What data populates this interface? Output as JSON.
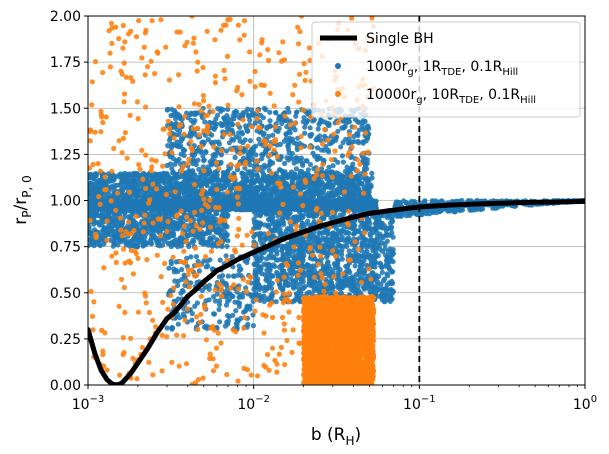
{
  "chart_data": {
    "type": "scatter",
    "title": "",
    "xlabel": {
      "main": "b (R",
      "sub": "H",
      "close": ")"
    },
    "ylabel": {
      "main": "r",
      "sub": "P",
      "mid": "/r",
      "sub2": "P, 0"
    },
    "xscale": "log",
    "xlim": [
      0.001,
      1
    ],
    "ylim": [
      0,
      2
    ],
    "grid": true,
    "x_ticks": [
      {
        "value": 0.001,
        "base": "10",
        "exp": "−3"
      },
      {
        "value": 0.01,
        "base": "10",
        "exp": "−2"
      },
      {
        "value": 0.1,
        "base": "10",
        "exp": "−1"
      },
      {
        "value": 1,
        "base": "10",
        "exp": "0"
      }
    ],
    "y_ticks": [
      {
        "value": 0.0,
        "label": "0.00"
      },
      {
        "value": 0.25,
        "label": "0.25"
      },
      {
        "value": 0.5,
        "label": "0.50"
      },
      {
        "value": 0.75,
        "label": "0.75"
      },
      {
        "value": 1.0,
        "label": "1.00"
      },
      {
        "value": 1.25,
        "label": "1.25"
      },
      {
        "value": 1.5,
        "label": "1.50"
      },
      {
        "value": 1.75,
        "label": "1.75"
      },
      {
        "value": 2.0,
        "label": "2.00"
      }
    ],
    "vline": {
      "x": 0.1,
      "style": "dashed",
      "color": "#000000"
    },
    "legend_position": "upper right",
    "series": [
      {
        "name": "Single BH",
        "kind": "line",
        "color": "#000000",
        "legend": [
          {
            "t": "Single BH"
          }
        ],
        "x": [
          0.001,
          0.0011,
          0.0012,
          0.0013,
          0.0014,
          0.0015,
          0.0016,
          0.0018,
          0.002,
          0.0023,
          0.0026,
          0.003,
          0.0033,
          0.0036,
          0.004,
          0.0045,
          0.005,
          0.0055,
          0.006,
          0.007,
          0.008,
          0.01,
          0.012,
          0.015,
          0.02,
          0.025,
          0.03,
          0.04,
          0.05,
          0.06,
          0.08,
          0.1,
          0.15,
          0.2,
          0.3,
          0.5,
          0.7,
          1.0
        ],
        "y": [
          0.3,
          0.17,
          0.08,
          0.03,
          0.005,
          0.0,
          0.01,
          0.06,
          0.12,
          0.2,
          0.28,
          0.36,
          0.39,
          0.43,
          0.48,
          0.52,
          0.56,
          0.59,
          0.62,
          0.65,
          0.68,
          0.72,
          0.75,
          0.79,
          0.83,
          0.86,
          0.88,
          0.91,
          0.93,
          0.94,
          0.955,
          0.965,
          0.975,
          0.98,
          0.985,
          0.99,
          0.992,
          0.995
        ]
      },
      {
        "name": "1000rg, 1RTDE, 0.1RHill",
        "kind": "scatter",
        "color": "#1f77b4",
        "legend": [
          {
            "t": "1000r"
          },
          {
            "t": "g",
            "sub": true
          },
          {
            "t": ", 1R"
          },
          {
            "t": "TDE",
            "sub": true
          },
          {
            "t": ", 0.1R"
          },
          {
            "t": "Hill",
            "sub": true
          }
        ],
        "regions": [
          {
            "x_range": [
              0.001,
              0.055
            ],
            "y_range": [
              0.95,
              1.0
            ],
            "density": "very high"
          },
          {
            "x_range": [
              0.001,
              0.052
            ],
            "y_range": [
              1.0,
              1.15
            ],
            "density": "high"
          },
          {
            "x_range": [
              0.003,
              0.05
            ],
            "y_range": [
              1.15,
              1.5
            ],
            "density": "medium"
          },
          {
            "x_range": [
              0.001,
              0.007
            ],
            "y_range": [
              0.75,
              0.95
            ],
            "density": "medium"
          },
          {
            "x_range": [
              0.01,
              0.07
            ],
            "y_range": [
              0.45,
              0.95
            ],
            "density": "high"
          },
          {
            "x_range": [
              0.003,
              0.01
            ],
            "y_range": [
              0.3,
              0.7
            ],
            "density": "low"
          },
          {
            "x_range": [
              0.07,
              1.0
            ],
            "y_range": [
              0.9,
              1.0
            ],
            "density": "band"
          }
        ]
      },
      {
        "name": "10000rg, 10RTDE, 0.1RHill",
        "kind": "scatter",
        "color": "#ff7f0e",
        "legend": [
          {
            "t": "10000r"
          },
          {
            "t": "g",
            "sub": true
          },
          {
            "t": ", 10R"
          },
          {
            "t": "TDE",
            "sub": true
          },
          {
            "t": ", 0.1R"
          },
          {
            "t": "Hill",
            "sub": true
          }
        ],
        "regions": [
          {
            "x_range": [
              0.001,
              0.053
            ],
            "y_range": [
              0.0,
              2.0
            ],
            "density": "medium"
          },
          {
            "x_range": [
              0.02,
              0.053
            ],
            "y_range": [
              0.0,
              0.48
            ],
            "density": "very high"
          }
        ]
      }
    ]
  }
}
